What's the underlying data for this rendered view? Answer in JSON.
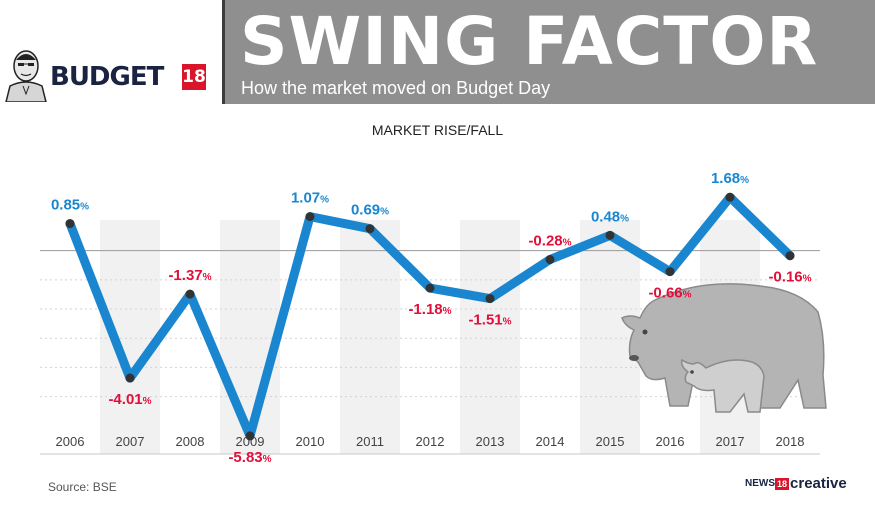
{
  "header": {
    "title": "SWING FACTOR",
    "subtitle": "How the market moved on Budget Day",
    "logo_text": "BUDGET",
    "logo_number": "18"
  },
  "chart_data": {
    "type": "line",
    "title": "MARKET RISE/FALL",
    "xlabel": "",
    "ylabel": "",
    "x": [
      "2006",
      "2007",
      "2008",
      "2009",
      "2010",
      "2011",
      "2012",
      "2013",
      "2014",
      "2015",
      "2016",
      "2017",
      "2018"
    ],
    "series": [
      {
        "values": [
          0.85,
          -4.01,
          -1.37,
          -5.83,
          1.07,
          0.69,
          -1.18,
          -1.51,
          -0.28,
          0.48,
          -0.66,
          1.68,
          -0.16
        ],
        "labels": [
          "0.85%",
          "-4.01%",
          "-1.37%",
          "-5.83%",
          "1.07%",
          "0.69%",
          "-1.18%",
          "-1.51%",
          "-0.28%",
          "0.48%",
          "-0.66%",
          "1.68%",
          "-0.16%"
        ]
      }
    ],
    "ylim": [
      -6.4,
      2.6
    ],
    "grid": true,
    "colors": {
      "line": "#1a86cf",
      "positive_label": "#1a86cf",
      "negative_label": "#e0103a",
      "marker": "#333333"
    }
  },
  "footer": {
    "source": "Source: BSE",
    "brand_news": "NEWS",
    "brand_number": "18",
    "brand_creative": "creative"
  },
  "icons": [
    "portrait-icon",
    "bear-bull-icon"
  ]
}
